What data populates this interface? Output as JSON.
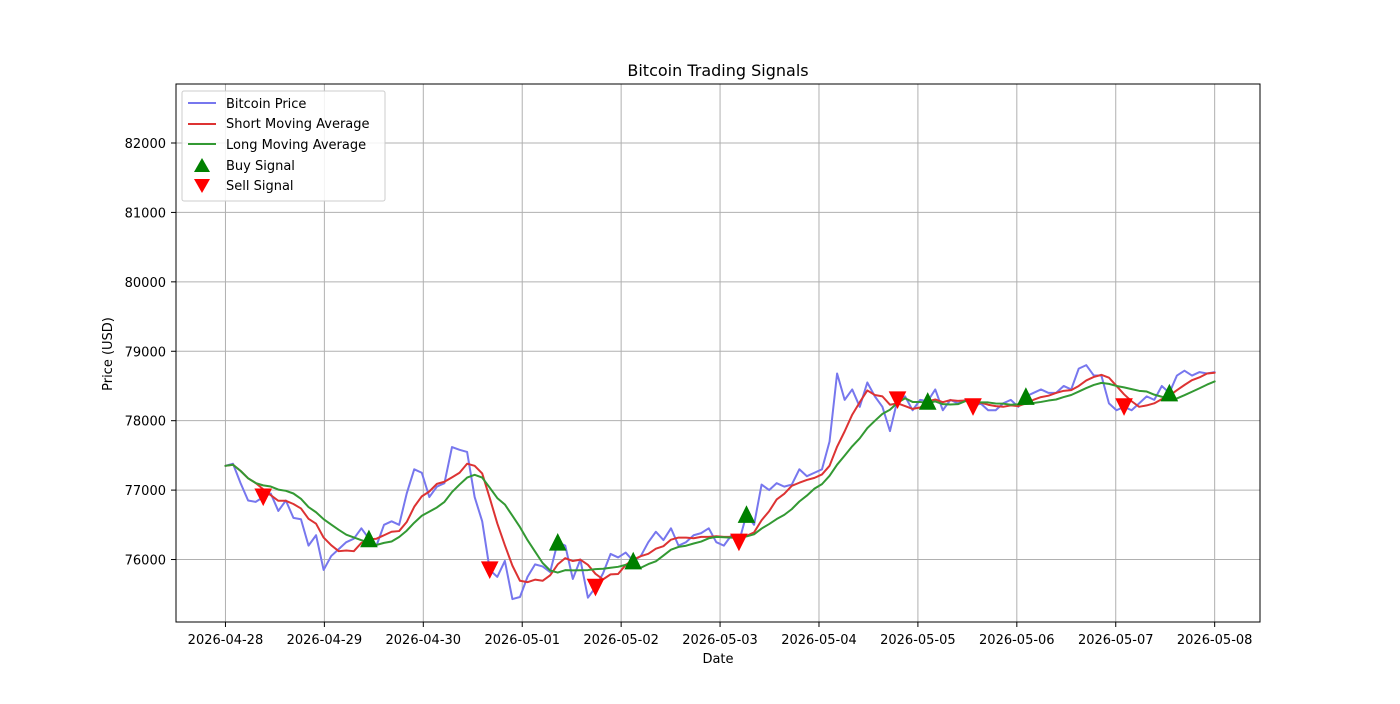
{
  "chart_data": {
    "type": "line",
    "title": "Bitcoin Trading Signals",
    "xlabel": "Date",
    "ylabel": "Price (USD)",
    "x_axis": {
      "start_date": "2026-04-28T00:00",
      "end_date": "2026-05-08T00:00",
      "xlim": [
        "2026-04-27T12:00",
        "2026-05-08T11:00"
      ],
      "tick_labels": [
        "2026-04-28",
        "2026-04-29",
        "2026-04-30",
        "2026-05-01",
        "2026-05-02",
        "2026-05-03",
        "2026-05-04",
        "2026-05-05",
        "2026-05-06",
        "2026-05-07",
        "2026-05-08"
      ]
    },
    "y_axis": {
      "ylim": [
        75100,
        82850
      ],
      "tick_values": [
        76000,
        77000,
        78000,
        79000,
        80000,
        81000,
        82000
      ],
      "tick_labels": [
        "76000",
        "77000",
        "78000",
        "79000",
        "80000",
        "81000",
        "82000"
      ]
    },
    "grid": true,
    "legend_position": "top-left",
    "series": [
      {
        "name": "Bitcoin Price",
        "color": "#7777ee",
        "points": [
          [
            "2026-04-28T00:00",
            77350
          ],
          [
            "2026-04-28T02:00",
            77380
          ],
          [
            "2026-04-28T04:00",
            77100
          ],
          [
            "2026-04-28T06:00",
            76850
          ],
          [
            "2026-04-28T08:00",
            76830
          ],
          [
            "2026-04-28T10:00",
            76900
          ],
          [
            "2026-04-28T12:00",
            76950
          ],
          [
            "2026-04-28T14:00",
            76700
          ],
          [
            "2026-04-28T16:00",
            76850
          ],
          [
            "2026-04-28T18:00",
            76600
          ],
          [
            "2026-04-28T20:00",
            76580
          ],
          [
            "2026-04-28T22:00",
            76200
          ],
          [
            "2026-04-29T00:00",
            76350
          ],
          [
            "2026-04-29T02:00",
            75850
          ],
          [
            "2026-04-29T04:00",
            76050
          ],
          [
            "2026-04-29T06:00",
            76150
          ],
          [
            "2026-04-29T08:00",
            76250
          ],
          [
            "2026-04-29T10:00",
            76300
          ],
          [
            "2026-04-29T12:00",
            76450
          ],
          [
            "2026-04-29T14:00",
            76300
          ],
          [
            "2026-04-29T16:00",
            76200
          ],
          [
            "2026-04-29T18:00",
            76500
          ],
          [
            "2026-04-29T20:00",
            76550
          ],
          [
            "2026-04-29T22:00",
            76500
          ],
          [
            "2026-04-30T00:00",
            76950
          ],
          [
            "2026-04-30T02:00",
            77300
          ],
          [
            "2026-04-30T04:00",
            77250
          ],
          [
            "2026-04-30T06:00",
            76900
          ],
          [
            "2026-04-30T08:00",
            77050
          ],
          [
            "2026-04-30T10:00",
            77100
          ],
          [
            "2026-04-30T12:00",
            77620
          ],
          [
            "2026-04-30T14:00",
            77580
          ],
          [
            "2026-04-30T16:00",
            77550
          ],
          [
            "2026-04-30T18:00",
            76900
          ],
          [
            "2026-04-30T20:00",
            76550
          ],
          [
            "2026-04-30T22:00",
            75850
          ],
          [
            "2026-05-01T00:00",
            75750
          ],
          [
            "2026-05-01T02:00",
            75980
          ],
          [
            "2026-05-01T04:00",
            75430
          ],
          [
            "2026-05-01T06:00",
            75460
          ],
          [
            "2026-05-01T08:00",
            75750
          ],
          [
            "2026-05-01T10:00",
            75930
          ],
          [
            "2026-05-01T12:00",
            75900
          ],
          [
            "2026-05-01T14:00",
            75820
          ],
          [
            "2026-05-01T16:00",
            76250
          ],
          [
            "2026-05-01T18:00",
            76200
          ],
          [
            "2026-05-01T20:00",
            75720
          ],
          [
            "2026-05-01T22:00",
            76000
          ],
          [
            "2026-05-02T00:00",
            75450
          ],
          [
            "2026-05-02T02:00",
            75600
          ],
          [
            "2026-05-02T04:00",
            75800
          ],
          [
            "2026-05-02T06:00",
            76080
          ],
          [
            "2026-05-02T08:00",
            76030
          ],
          [
            "2026-05-02T10:00",
            76100
          ],
          [
            "2026-05-02T12:00",
            75980
          ],
          [
            "2026-05-02T14:00",
            76050
          ],
          [
            "2026-05-02T16:00",
            76250
          ],
          [
            "2026-05-02T18:00",
            76400
          ],
          [
            "2026-05-02T20:00",
            76280
          ],
          [
            "2026-05-02T22:00",
            76450
          ],
          [
            "2026-05-03T00:00",
            76200
          ],
          [
            "2026-05-03T02:00",
            76250
          ],
          [
            "2026-05-03T04:00",
            76350
          ],
          [
            "2026-05-03T06:00",
            76380
          ],
          [
            "2026-05-03T08:00",
            76450
          ],
          [
            "2026-05-03T10:00",
            76250
          ],
          [
            "2026-05-03T12:00",
            76200
          ],
          [
            "2026-05-03T14:00",
            76350
          ],
          [
            "2026-05-03T16:00",
            76250
          ],
          [
            "2026-05-03T18:00",
            76650
          ],
          [
            "2026-05-03T20:00",
            76500
          ],
          [
            "2026-05-03T22:00",
            77080
          ],
          [
            "2026-05-04T00:00",
            77000
          ],
          [
            "2026-05-04T02:00",
            77100
          ],
          [
            "2026-05-04T04:00",
            77050
          ],
          [
            "2026-05-04T06:00",
            77080
          ],
          [
            "2026-05-04T08:00",
            77300
          ],
          [
            "2026-05-04T10:00",
            77200
          ],
          [
            "2026-05-04T12:00",
            77250
          ],
          [
            "2026-05-04T14:00",
            77300
          ],
          [
            "2026-05-04T16:00",
            77700
          ],
          [
            "2026-05-04T18:00",
            78680
          ],
          [
            "2026-05-04T20:00",
            78300
          ],
          [
            "2026-05-04T22:00",
            78450
          ],
          [
            "2026-05-05T00:00",
            78200
          ],
          [
            "2026-05-05T02:00",
            78550
          ],
          [
            "2026-05-05T04:00",
            78350
          ],
          [
            "2026-05-05T06:00",
            78200
          ],
          [
            "2026-05-05T08:00",
            77850
          ],
          [
            "2026-05-05T10:00",
            78300
          ],
          [
            "2026-05-05T12:00",
            78350
          ],
          [
            "2026-05-05T14:00",
            78150
          ],
          [
            "2026-05-05T16:00",
            78300
          ],
          [
            "2026-05-05T18:00",
            78280
          ],
          [
            "2026-05-05T20:00",
            78450
          ],
          [
            "2026-05-05T22:00",
            78150
          ],
          [
            "2026-05-06T00:00",
            78300
          ],
          [
            "2026-05-06T02:00",
            78250
          ],
          [
            "2026-05-06T04:00",
            78300
          ],
          [
            "2026-05-06T06:00",
            78200
          ],
          [
            "2026-05-06T08:00",
            78250
          ],
          [
            "2026-05-06T10:00",
            78150
          ],
          [
            "2026-05-06T12:00",
            78150
          ],
          [
            "2026-05-06T14:00",
            78250
          ],
          [
            "2026-05-06T16:00",
            78300
          ],
          [
            "2026-05-06T18:00",
            78200
          ],
          [
            "2026-05-06T20:00",
            78350
          ],
          [
            "2026-05-06T22:00",
            78400
          ],
          [
            "2026-05-07T00:00",
            78450
          ],
          [
            "2026-05-07T02:00",
            78400
          ],
          [
            "2026-05-07T04:00",
            78400
          ],
          [
            "2026-05-07T06:00",
            78500
          ],
          [
            "2026-05-07T08:00",
            78450
          ],
          [
            "2026-05-07T10:00",
            78750
          ],
          [
            "2026-05-07T12:00",
            78800
          ],
          [
            "2026-05-07T14:00",
            78650
          ],
          [
            "2026-05-07T16:00",
            78650
          ],
          [
            "2026-05-07T18:00",
            78250
          ],
          [
            "2026-05-07T20:00",
            78150
          ],
          [
            "2026-05-07T22:00",
            78200
          ],
          [
            "2026-05-08T00:00",
            78150
          ],
          [
            "2026-05-08T02:00",
            78250
          ],
          [
            "2026-05-08T04:00",
            78350
          ],
          [
            "2026-05-08T06:00",
            78300
          ],
          [
            "2026-05-08T08:00",
            78500
          ],
          [
            "2026-05-08T10:00",
            78400
          ],
          [
            "2026-05-08T12:00",
            78650
          ],
          [
            "2026-05-08T14:00",
            78720
          ],
          [
            "2026-05-08T16:00",
            78650
          ],
          [
            "2026-05-08T18:00",
            78700
          ],
          [
            "2026-05-08T20:00",
            78680
          ],
          [
            "2026-05-08T22:00",
            78700
          ]
        ]
      },
      {
        "name": "Short Moving Average",
        "color": "#dd3333",
        "points": []
      },
      {
        "name": "Long Moving Average",
        "color": "#339933",
        "points": []
      }
    ],
    "signals": {
      "buy": {
        "name": "Buy Signal",
        "color": "#008000",
        "points": []
      },
      "sell": {
        "name": "Sell Signal",
        "color": "#ff0000",
        "points": []
      }
    }
  }
}
